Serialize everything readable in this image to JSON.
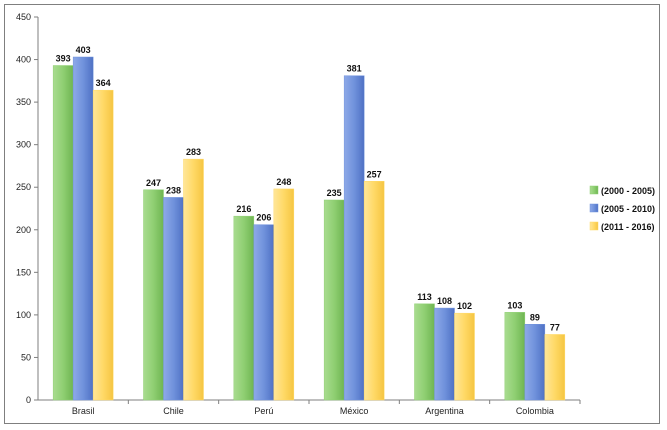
{
  "chart_data": {
    "type": "bar",
    "title": "",
    "xlabel": "",
    "ylabel": "",
    "ylim": [
      0,
      450
    ],
    "yticks": [
      0,
      50,
      100,
      150,
      200,
      250,
      300,
      350,
      400,
      450
    ],
    "grid": false,
    "legend_position": "right",
    "categories": [
      "Brasil",
      "Chile",
      "Perú",
      "México",
      "Argentina",
      "Colombia"
    ],
    "series": [
      {
        "name": "(2000 - 2005)",
        "color": "#8fcf72",
        "values": [
          393,
          247,
          216,
          235,
          113,
          103
        ]
      },
      {
        "name": "(2005 - 2010)",
        "color": "#7092dc",
        "values": [
          403,
          238,
          206,
          381,
          108,
          89
        ]
      },
      {
        "name": "(2011 - 2016)",
        "color": "#ffd966",
        "values": [
          364,
          283,
          248,
          257,
          102,
          77
        ]
      }
    ]
  }
}
